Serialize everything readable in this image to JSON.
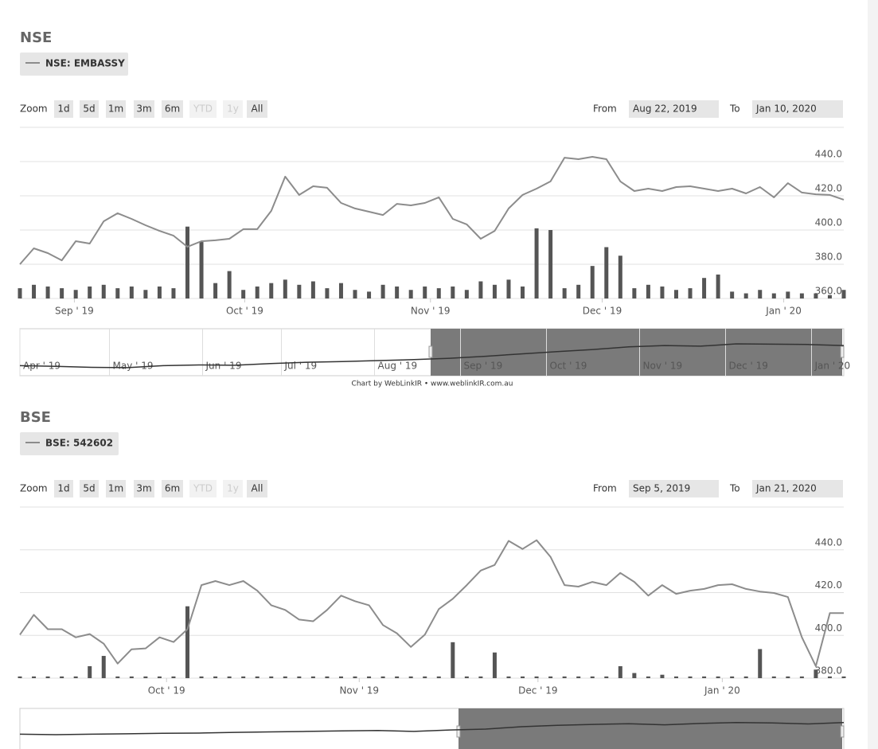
{
  "chart_data": [
    {
      "type": "line",
      "title": "NSE",
      "zoom_label": "Zoom",
      "zoom_buttons": [
        "1d",
        "5d",
        "1m",
        "3m",
        "6m",
        "YTD",
        "1y",
        "All"
      ],
      "zoom_disabled": [
        5,
        6
      ],
      "from_label": "From",
      "from_date": "Aug 22, 2019",
      "to_label": "To",
      "to_date": "Jan 10, 2020",
      "series": [
        {
          "name": "NSE: EMBASSY",
          "color": "#8c8c8c",
          "values": [
            380,
            389.3,
            386.5,
            382.3,
            393.5,
            392.1,
            405.1,
            409.8,
            406.5,
            402.8,
            399.5,
            396.7,
            390.2,
            393.5,
            394,
            394.9,
            400.5,
            400.5,
            411.2,
            431.2,
            420.5,
            425.6,
            424.7,
            415.8,
            412.6,
            410.7,
            408.8,
            415.3,
            414.4,
            415.8,
            419.1,
            406.5,
            403.3,
            394.9,
            399.5,
            412.6,
            420.5,
            424.2,
            428.4,
            442.3,
            441.4,
            442.8,
            441.4,
            428.4,
            422.8,
            424.2,
            422.8,
            425.1,
            425.6,
            424.2,
            422.8,
            424.2,
            421.4,
            425.1,
            419.1,
            427.4,
            421.9,
            420.9,
            420.5,
            417.7
          ]
        }
      ],
      "volume": {
        "color": "#555555",
        "values": [
          6,
          8,
          7,
          6,
          5,
          7,
          8,
          6,
          7,
          5,
          7,
          6,
          42,
          33,
          9,
          16,
          5,
          7,
          9,
          11,
          8,
          10,
          6,
          9,
          5,
          4,
          8,
          7,
          5,
          7,
          6,
          7,
          5,
          10,
          8,
          11,
          7,
          41,
          40,
          6,
          8,
          19,
          30,
          25,
          6,
          8,
          7,
          5,
          6,
          12,
          14,
          4,
          3,
          5,
          3,
          4,
          3,
          3,
          2,
          5
        ]
      },
      "ylim": [
        360,
        460
      ],
      "yticks": [
        {
          "value": 360,
          "label": "360.0"
        },
        {
          "value": 380,
          "label": "380.0"
        },
        {
          "value": 400,
          "label": "400.0"
        },
        {
          "value": 420,
          "label": "420.0"
        },
        {
          "value": 440,
          "label": "440.0"
        }
      ],
      "y2lim": [
        0,
        100
      ],
      "xticks": [
        {
          "value": 3.9,
          "label": "Sep ' 19"
        },
        {
          "value": 16.1,
          "label": "Oct ' 19"
        },
        {
          "value": 29.4,
          "label": "Nov ' 19"
        },
        {
          "value": 41.7,
          "label": "Dec ' 19"
        },
        {
          "value": 54.7,
          "label": "Jan ' 20"
        }
      ],
      "grid": true,
      "navigator": {
        "ylim": [
          320,
          460
        ],
        "values": [
          350,
          348,
          345,
          344,
          350,
          352,
          351,
          356,
          360,
          362,
          365,
          368,
          372,
          378,
          385,
          392,
          398,
          406,
          410,
          408,
          415,
          414,
          413,
          410
        ],
        "xticks": [
          {
            "value": 0,
            "label": "Apr ' 19"
          },
          {
            "value": 2.5,
            "label": "May ' 19"
          },
          {
            "value": 5.1,
            "label": "Jun ' 19"
          },
          {
            "value": 7.3,
            "label": "Jul ' 19"
          },
          {
            "value": 9.9,
            "label": "Aug ' 19"
          },
          {
            "value": 12.3,
            "label": "Sep ' 19"
          },
          {
            "value": 14.7,
            "label": "Oct ' 19"
          },
          {
            "value": 17.3,
            "label": "Nov ' 19"
          },
          {
            "value": 19.7,
            "label": "Dec ' 19"
          },
          {
            "value": 22.1,
            "label": "Jan ' 20"
          }
        ]
      },
      "credit": "Chart by WebLinkIR • www.weblinkIR.com.au"
    },
    {
      "type": "line",
      "title": "BSE",
      "zoom_label": "Zoom",
      "zoom_buttons": [
        "1d",
        "5d",
        "1m",
        "3m",
        "6m",
        "YTD",
        "1y",
        "All"
      ],
      "zoom_disabled": [
        5,
        6
      ],
      "from_label": "From",
      "from_date": "Sep 5, 2019",
      "to_label": "To",
      "to_date": "Jan 21, 2020",
      "series": [
        {
          "name": "BSE: 542602",
          "color": "#8c8c8c",
          "values": [
            400.3,
            409.6,
            402.9,
            402.9,
            399.1,
            400.6,
            396.1,
            386.8,
            393.5,
            393.9,
            399.1,
            396.9,
            402.9,
            423.5,
            425.4,
            423.5,
            425.4,
            420.9,
            414.1,
            411.9,
            407.4,
            406.6,
            411.9,
            418.6,
            416,
            414.1,
            404.8,
            401,
            394.6,
            400.3,
            412.3,
            417.1,
            423.5,
            430.3,
            432.9,
            444.2,
            440.4,
            444.5,
            436.7,
            423.5,
            422.8,
            425,
            423.5,
            429.2,
            425,
            418.6,
            423.5,
            419.4,
            420.9,
            421.7,
            423.5,
            423.9,
            421.7,
            420.5,
            419.8,
            417.9,
            399.1,
            385.6,
            410.4,
            410.4
          ]
        }
      ],
      "volume": {
        "color": "#555555",
        "values": [
          1,
          1,
          1,
          1,
          1,
          7,
          13,
          1,
          1,
          1,
          1,
          1,
          42,
          1,
          1,
          1,
          1,
          1,
          1,
          1,
          1,
          1,
          1,
          1,
          1,
          1,
          1,
          1,
          1,
          1,
          1,
          21,
          1,
          1,
          15,
          1,
          1,
          1,
          1,
          1,
          1,
          1,
          1,
          7,
          3,
          1,
          2,
          1,
          1,
          1,
          1,
          1,
          1,
          17,
          1,
          1,
          1,
          5,
          1,
          1
        ]
      },
      "ylim": [
        380,
        460
      ],
      "yticks": [
        {
          "value": 380,
          "label": "380.0"
        },
        {
          "value": 400,
          "label": "400.0"
        },
        {
          "value": 420,
          "label": "420.0"
        },
        {
          "value": 440,
          "label": "440.0"
        }
      ],
      "y2lim": [
        0,
        100
      ],
      "xticks": [
        {
          "value": 10.5,
          "label": "Oct ' 19"
        },
        {
          "value": 24.3,
          "label": "Nov ' 19"
        },
        {
          "value": 37.1,
          "label": "Dec ' 19"
        },
        {
          "value": 50.3,
          "label": "Jan ' 20"
        }
      ],
      "grid": true,
      "navigator": {
        "ylim": [
          250,
          450
        ],
        "values": [
          340,
          338,
          340,
          342,
          344,
          345,
          348,
          350,
          352,
          354,
          356,
          352,
          358,
          362,
          372,
          378,
          382,
          385,
          380,
          386,
          390,
          388,
          384,
          390
        ]
      }
    }
  ]
}
